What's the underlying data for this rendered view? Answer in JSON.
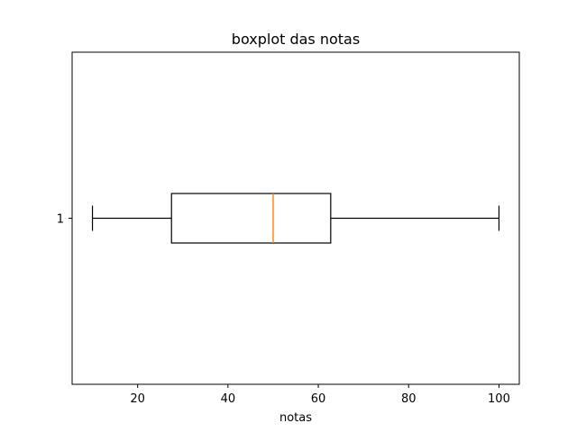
{
  "chart_data": {
    "type": "boxplot",
    "orientation": "horizontal",
    "title": "boxplot das notas",
    "xlabel": "notas",
    "ylabel": "",
    "xlim": [
      5.5,
      104.5
    ],
    "x_ticks": [
      20,
      40,
      60,
      80,
      100
    ],
    "y_ticks": [
      "1"
    ],
    "grid": false,
    "series": [
      {
        "category": "1",
        "whisker_low": 10,
        "q1": 27.5,
        "median": 50,
        "q3": 62.75,
        "whisker_high": 100
      }
    ],
    "colors": {
      "box": "#000000",
      "median": "#ff7f0e",
      "axes": "#000000"
    }
  }
}
